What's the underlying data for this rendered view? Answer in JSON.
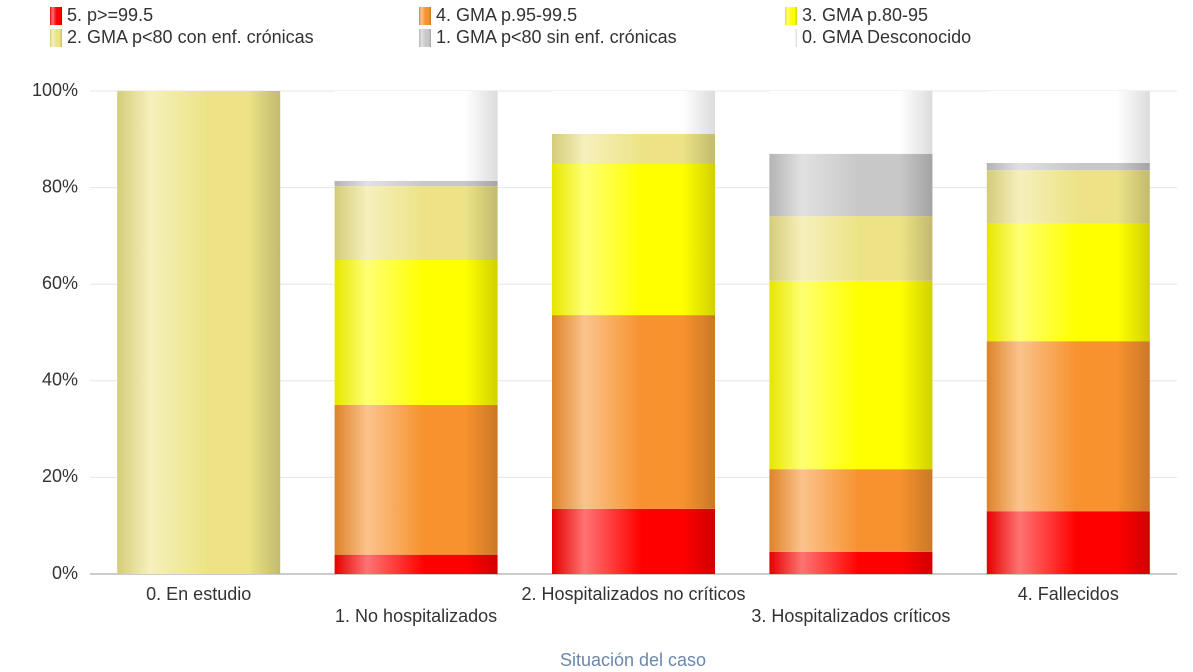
{
  "chart_data": {
    "type": "stacked_bar",
    "xlabel": "Situación del caso",
    "categories": [
      "0. En estudio",
      "1. No hospitalizados",
      "2. Hospitalizados no críticos",
      "3. Hospitalizados críticos",
      "4. Fallecidos"
    ],
    "series": [
      {
        "name": "5. p>=99.5",
        "color": "#ff0000",
        "values": [
          0,
          4,
          13.5,
          4.6,
          13
        ]
      },
      {
        "name": "4. GMA p.95-99.5",
        "color": "#f7922e",
        "values": [
          0,
          31,
          40.1,
          17.1,
          35.2
        ]
      },
      {
        "name": "3. GMA p.80-95",
        "color": "#ffff00",
        "values": [
          0,
          30,
          31.3,
          39,
          24.3
        ]
      },
      {
        "name": "2. GMA p<80 con enf. crónicas",
        "color": "#ede386",
        "values": [
          100,
          15.3,
          6.2,
          13.4,
          11.1
        ]
      },
      {
        "name": "1. GMA p<80 sin enf. crónicas",
        "color": "#c8c8c8",
        "values": [
          0,
          1.1,
          0,
          12.9,
          1.5
        ]
      },
      {
        "name": "0. GMA Desconocido",
        "color": "#ffffff",
        "values": [
          0,
          18.6,
          8.9,
          13,
          14.9
        ]
      }
    ],
    "ylim": [
      0,
      100
    ],
    "yticks": [
      {
        "value": 0,
        "label": "0%"
      },
      {
        "value": 20,
        "label": "20%"
      },
      {
        "value": 40,
        "label": "40%"
      },
      {
        "value": 60,
        "label": "60%"
      },
      {
        "value": 80,
        "label": "80%"
      },
      {
        "value": 100,
        "label": "100%"
      }
    ],
    "grid": true
  }
}
